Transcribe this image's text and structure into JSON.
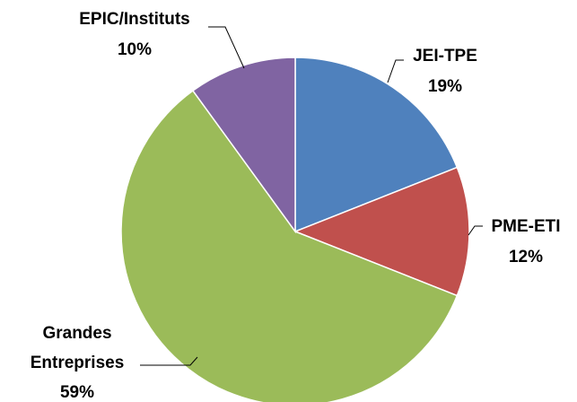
{
  "chart_data": {
    "type": "pie",
    "categories": [
      "JEI-TPE",
      "PME-ETI",
      "Grandes Entreprises",
      "EPIC/Instituts"
    ],
    "values": [
      19,
      12,
      59,
      10
    ],
    "value_labels": [
      "19%",
      "12%",
      "59%",
      "10%"
    ],
    "colors": [
      "#4f81bd",
      "#c0504d",
      "#9bbb59",
      "#8064a2"
    ]
  }
}
